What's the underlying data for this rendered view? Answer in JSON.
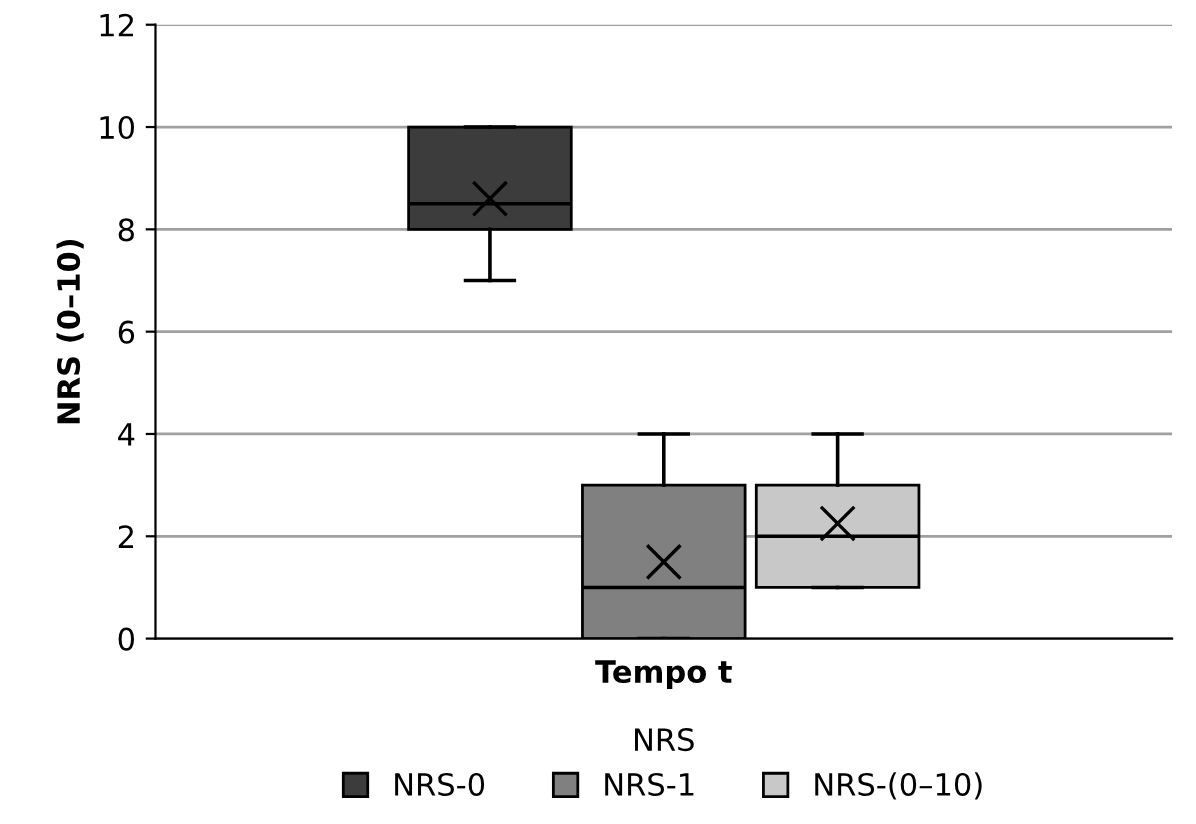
{
  "chart_data": {
    "type": "box",
    "categories": [
      null
    ],
    "xlabel": "Tempo t",
    "ylabel": "NRS (0–10)",
    "legend_title": "NRS",
    "ylim": [
      0,
      12
    ],
    "yticks": [
      0,
      2,
      4,
      6,
      8,
      10,
      12
    ],
    "grid": "y",
    "legend": "bottom",
    "series": [
      {
        "name": "NRS-0",
        "color": "#3c3c3c",
        "boxes": [
          {
            "low": 7,
            "q1": 8,
            "median": 8.5,
            "q3": 10,
            "high": 10,
            "mean": 8.6
          }
        ]
      },
      {
        "name": "NRS-1",
        "color": "#808080",
        "boxes": [
          {
            "low": 0,
            "q1": 0,
            "median": 1,
            "q3": 3,
            "high": 4,
            "mean": 1.5
          }
        ]
      },
      {
        "name": "NRS-(0–10)",
        "color": "#c8c8c8",
        "boxes": [
          {
            "low": 1,
            "q1": 1,
            "median": 2,
            "q3": 3,
            "high": 4,
            "mean": 2.25
          }
        ]
      }
    ]
  }
}
